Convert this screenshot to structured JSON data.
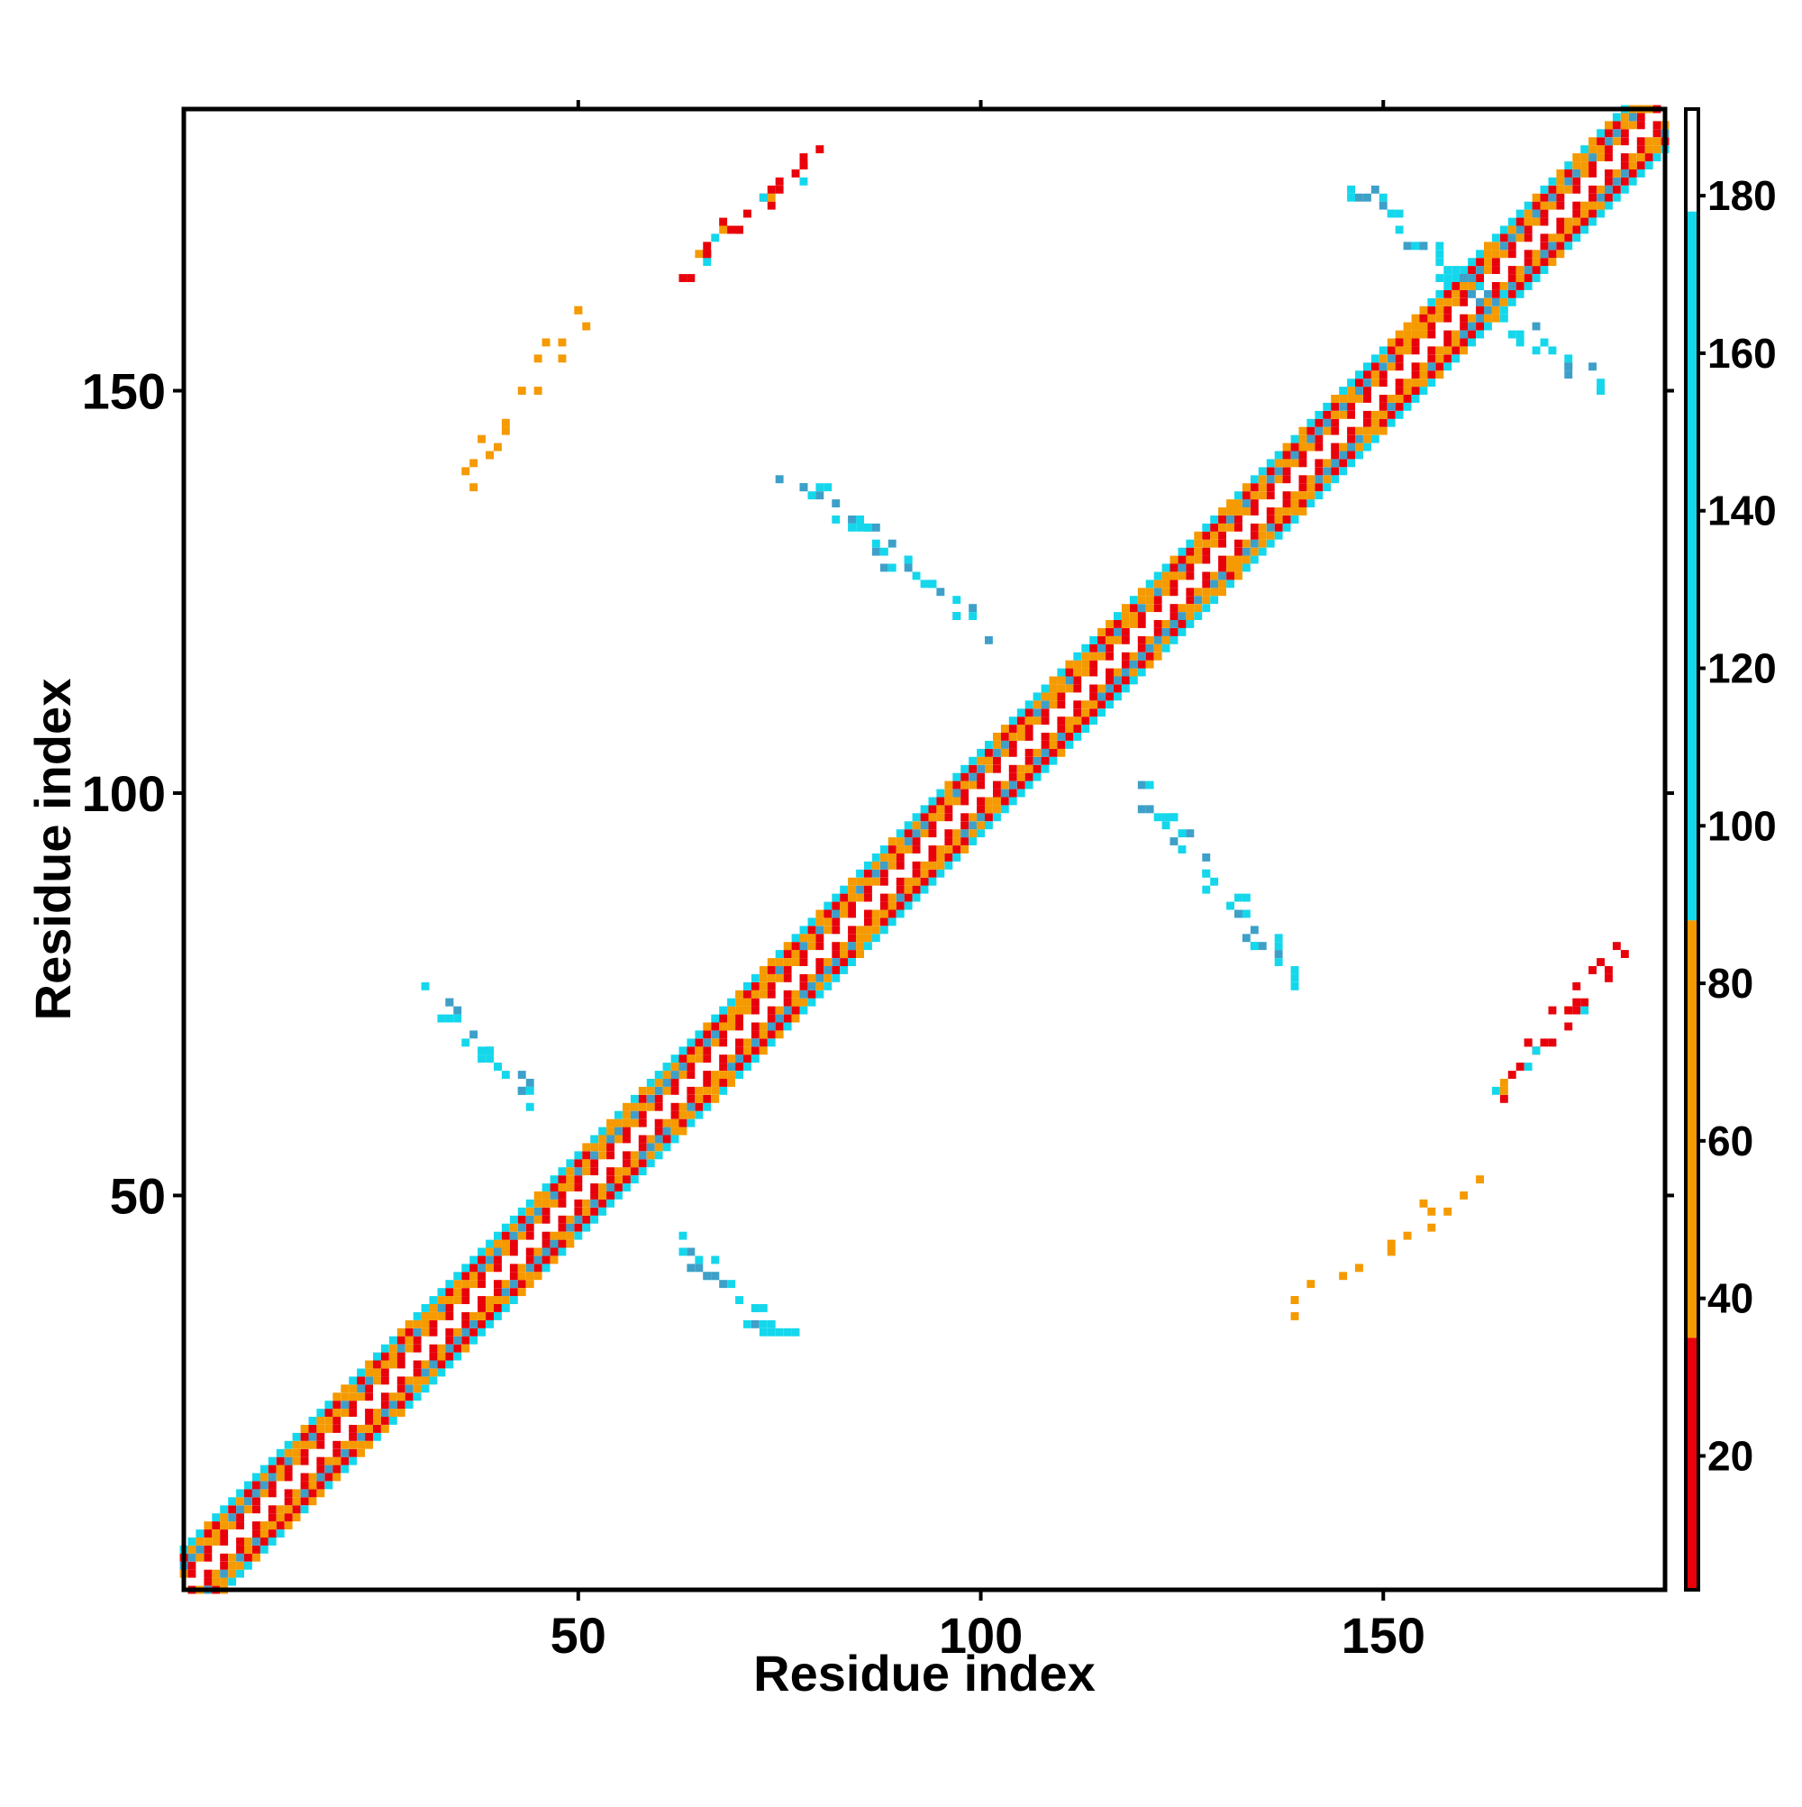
{
  "chart_data": {
    "type": "heatmap",
    "title": "",
    "xlabel": "Residue index",
    "ylabel": "Residue index",
    "xlim": [
      1,
      185
    ],
    "ylim": [
      1,
      185
    ],
    "x_ticks": [
      50,
      100,
      150
    ],
    "y_ticks": [
      50,
      100,
      150
    ],
    "grid": false,
    "colorbar": {
      "position": "right",
      "range": [
        3,
        191
      ],
      "ticks": [
        20,
        40,
        60,
        80,
        100,
        120,
        140,
        160,
        180
      ],
      "bands": [
        {
          "from": 3,
          "to": 35,
          "color": "#e8000b"
        },
        {
          "from": 35,
          "to": 88,
          "color": "#f59a00"
        },
        {
          "from": 88,
          "to": 178,
          "color": "#14d7ec"
        },
        {
          "from": 178,
          "to": 191,
          "color": "#ffffff"
        }
      ]
    },
    "colors": {
      "near": "#e8000b",
      "mid": "#f59a00",
      "far": "#14d7ec",
      "far_dark": "#3ea0c8"
    },
    "diagonal_band": {
      "x_start": 1,
      "x_end": 185,
      "half_width": 5
    },
    "off_diagonal_contacts": [
      {
        "x": [
          32,
          44
        ],
        "y": [
          62,
          75
        ],
        "orientation": "anti",
        "color": "far"
      },
      {
        "x": [
          62,
          76
        ],
        "y": [
          32,
          44
        ],
        "orientation": "anti",
        "color": "far"
      },
      {
        "x": [
          35,
          52
        ],
        "y": [
          137,
          162
        ],
        "orientation": "parallel",
        "color": "mid"
      },
      {
        "x": [
          137,
          162
        ],
        "y": [
          35,
          52
        ],
        "orientation": "parallel",
        "color": "mid"
      },
      {
        "x": [
          63,
          80
        ],
        "y": [
          164,
          180
        ],
        "orientation": "parallel",
        "color": "near"
      },
      {
        "x": [
          164,
          180
        ],
        "y": [
          63,
          80
        ],
        "orientation": "parallel",
        "color": "near"
      },
      {
        "x": [
          76,
          100
        ],
        "y": [
          120,
          140
        ],
        "orientation": "anti",
        "color": "far"
      },
      {
        "x": [
          120,
          140
        ],
        "y": [
          76,
          100
        ],
        "orientation": "anti",
        "color": "far"
      },
      {
        "x": [
          145,
          177
        ],
        "y": [
          150,
          176
        ],
        "orientation": "anti",
        "color": "far"
      }
    ]
  }
}
